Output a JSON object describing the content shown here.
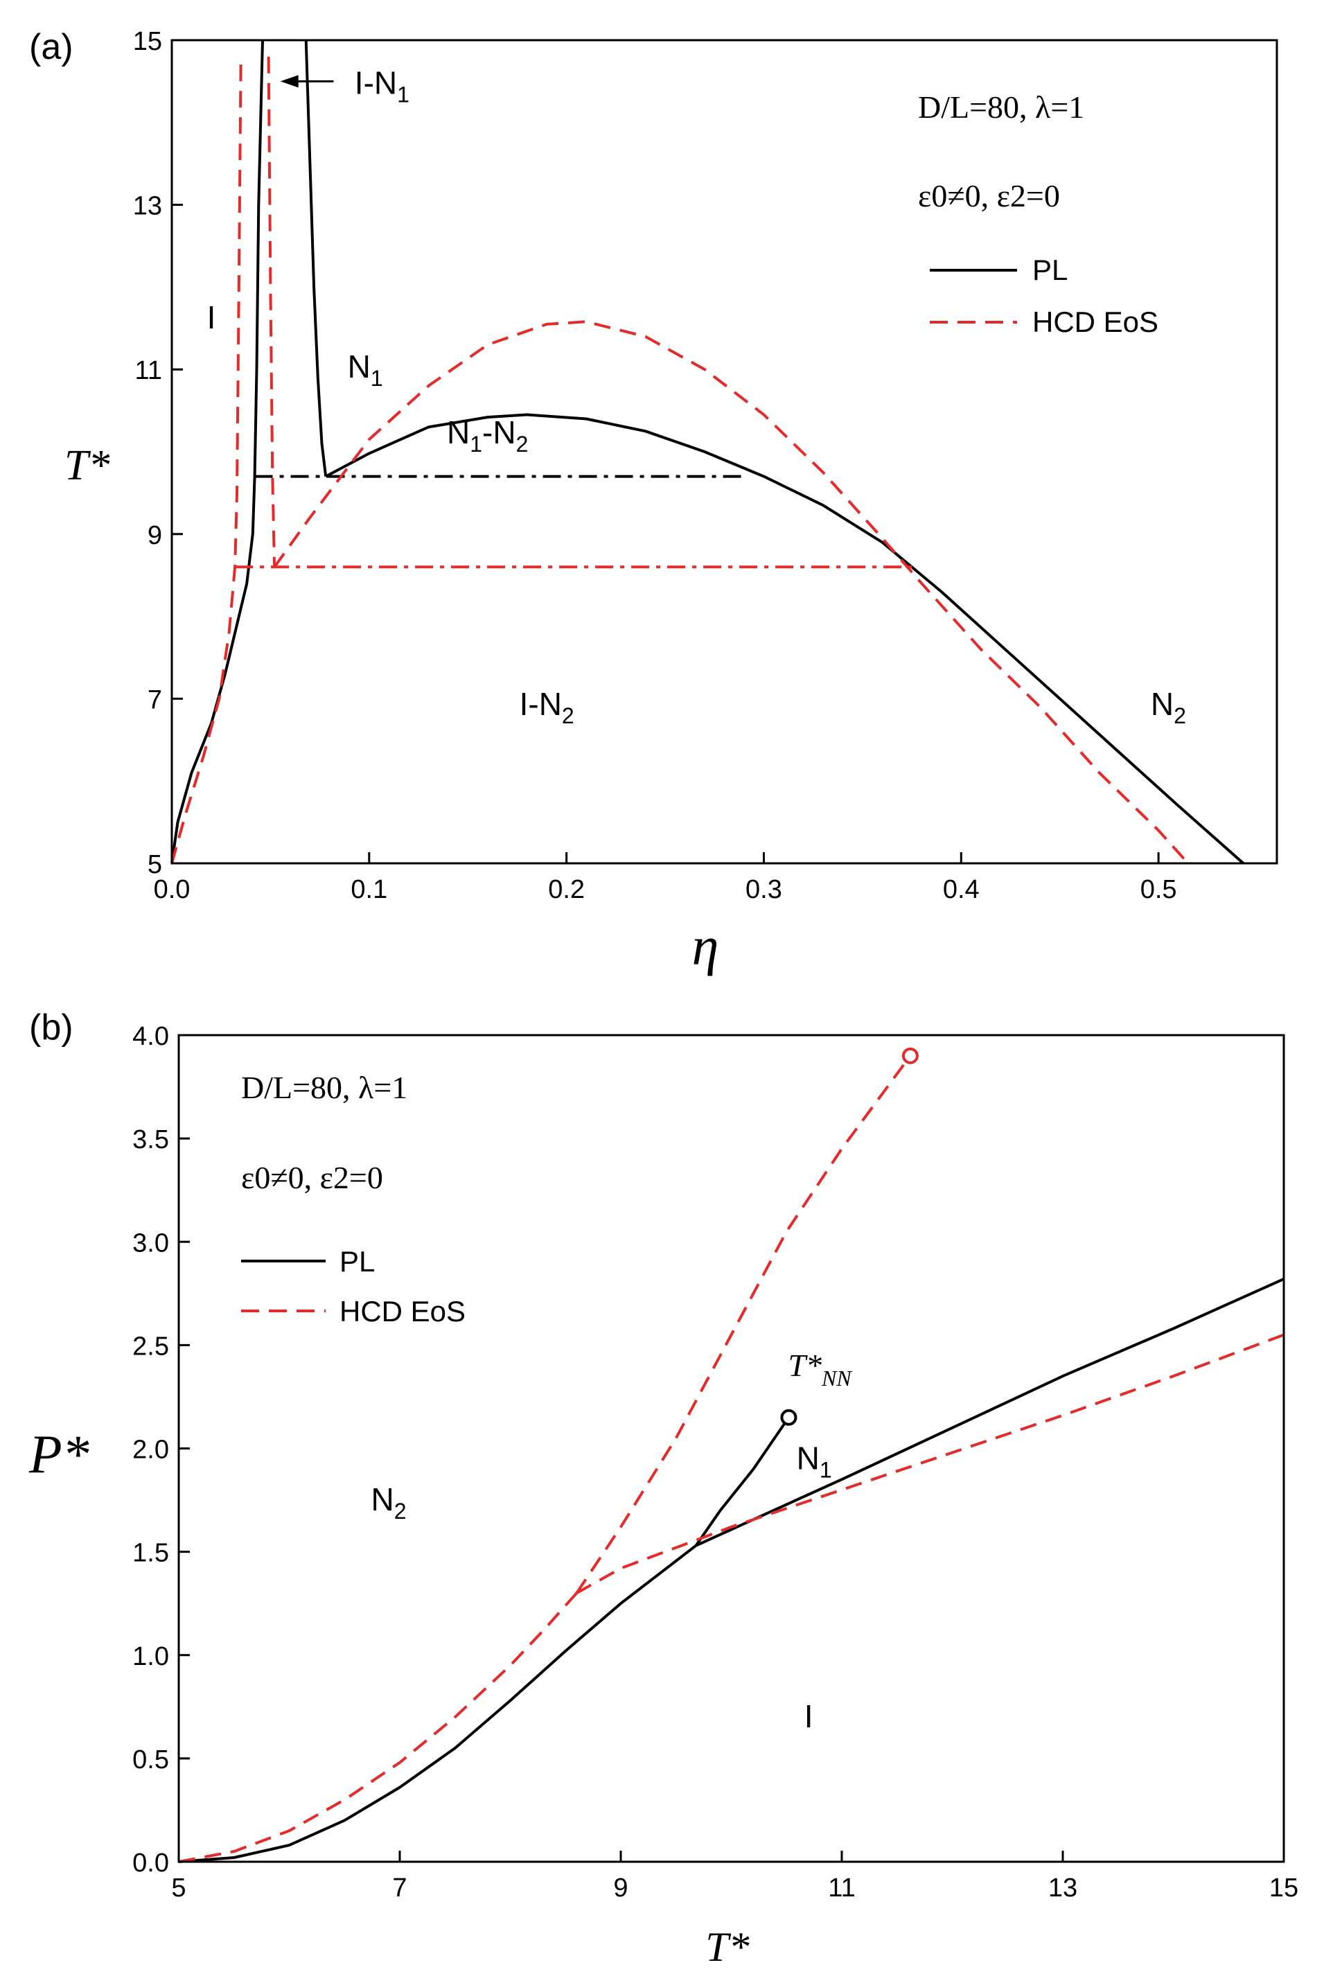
{
  "chart_data": [
    {
      "panel_tag": "(a)",
      "type": "line",
      "xlabel": "η",
      "ylabel": "T*",
      "xlim": [
        0.0,
        0.56
      ],
      "ylim": [
        5,
        15
      ],
      "xticks": [
        "0.0",
        "0.1",
        "0.2",
        "0.3",
        "0.4",
        "0.5"
      ],
      "yticks": [
        "5",
        "7",
        "9",
        "11",
        "13",
        "15"
      ],
      "grid": false,
      "legend_position": "top-right",
      "params_line": "D/L=80, λ=1",
      "epsilon_line": "ε0≠0, ε2=0",
      "legend": [
        {
          "label": "PL",
          "color": "#000000",
          "dash": "solid"
        },
        {
          "label": "HCD EoS",
          "color": "#e32b2b",
          "dash": "dashed"
        }
      ],
      "regions": [
        {
          "label": "I",
          "x": 0.02,
          "y": 11.5
        },
        {
          "label": "N",
          "sub": "1",
          "x": 0.098,
          "y": 10.9
        },
        {
          "label": "N",
          "sub": "1",
          "label2": "-N",
          "sub2": "2",
          "x": 0.16,
          "y": 10.1
        },
        {
          "label": "I-N",
          "sub": "2",
          "x": 0.19,
          "y": 6.8
        },
        {
          "label": "N",
          "sub": "2",
          "x": 0.505,
          "y": 6.8
        }
      ],
      "annotation": {
        "label": "I-N",
        "sub": "1",
        "text_x": 0.103,
        "text_y": 14.5,
        "arrow_to_x": 0.055,
        "arrow_to_y": 14.5
      },
      "series": [
        {
          "name": "PL",
          "color": "#000000",
          "dash": "solid",
          "role": "I-N coexistence (isotropic side)",
          "points": [
            [
              0.0,
              5.0
            ],
            [
              0.003,
              5.5
            ],
            [
              0.01,
              6.1
            ],
            [
              0.02,
              6.7
            ],
            [
              0.027,
              7.3
            ],
            [
              0.033,
              7.9
            ],
            [
              0.038,
              8.4
            ],
            [
              0.041,
              9.0
            ],
            [
              0.042,
              9.7
            ],
            [
              0.043,
              11.0
            ],
            [
              0.044,
              13.0
            ],
            [
              0.046,
              15.0
            ]
          ]
        },
        {
          "name": "PL",
          "color": "#000000",
          "dash": "solid",
          "role": "I-N1 coexistence (nematic side)",
          "points": [
            [
              0.068,
              15.0
            ],
            [
              0.07,
              13.5
            ],
            [
              0.072,
              12.0
            ],
            [
              0.074,
              10.9
            ],
            [
              0.076,
              10.1
            ],
            [
              0.078,
              9.7
            ]
          ]
        },
        {
          "name": "PL",
          "color": "#000000",
          "dash": "solid",
          "role": "N1-N2 binodal and I-N2 boundary",
          "points": [
            [
              0.078,
              9.7
            ],
            [
              0.1,
              9.98
            ],
            [
              0.13,
              10.3
            ],
            [
              0.16,
              10.42
            ],
            [
              0.18,
              10.45
            ],
            [
              0.21,
              10.4
            ],
            [
              0.24,
              10.25
            ],
            [
              0.27,
              10.0
            ],
            [
              0.3,
              9.7
            ],
            [
              0.33,
              9.35
            ],
            [
              0.36,
              8.9
            ],
            [
              0.39,
              8.3
            ],
            [
              0.42,
              7.65
            ],
            [
              0.45,
              7.0
            ],
            [
              0.48,
              6.35
            ],
            [
              0.51,
              5.7
            ],
            [
              0.543,
              5.0
            ]
          ]
        },
        {
          "name": "PL",
          "color": "#000000",
          "dash": "dashdot",
          "role": "triple point T=9.7",
          "points": [
            [
              0.042,
              9.7
            ],
            [
              0.29,
              9.7
            ]
          ]
        },
        {
          "name": "HCD EoS",
          "color": "#e32b2b",
          "dash": "dashed",
          "role": "I-N coexistence (isotropic side)",
          "points": [
            [
              0.0,
              5.0
            ],
            [
              0.007,
              5.6
            ],
            [
              0.016,
              6.3
            ],
            [
              0.024,
              7.0
            ],
            [
              0.029,
              7.8
            ],
            [
              0.032,
              8.6
            ],
            [
              0.033,
              9.5
            ],
            [
              0.034,
              12.0
            ],
            [
              0.035,
              14.8
            ]
          ]
        },
        {
          "name": "HCD EoS",
          "color": "#e32b2b",
          "dash": "dashed",
          "role": "I-N1 coexistence (nematic side)",
          "points": [
            [
              0.049,
              14.8
            ],
            [
              0.05,
              12.0
            ],
            [
              0.051,
              9.7
            ],
            [
              0.052,
              8.6
            ]
          ]
        },
        {
          "name": "HCD EoS",
          "color": "#e32b2b",
          "dash": "dashed",
          "role": "N1-N2 binodal and I-N2 boundary",
          "points": [
            [
              0.052,
              8.6
            ],
            [
              0.07,
              9.2
            ],
            [
              0.1,
              10.15
            ],
            [
              0.13,
              10.8
            ],
            [
              0.16,
              11.3
            ],
            [
              0.19,
              11.55
            ],
            [
              0.21,
              11.58
            ],
            [
              0.24,
              11.4
            ],
            [
              0.27,
              11.0
            ],
            [
              0.3,
              10.45
            ],
            [
              0.33,
              9.75
            ],
            [
              0.36,
              8.95
            ],
            [
              0.38,
              8.4
            ],
            [
              0.41,
              7.6
            ],
            [
              0.44,
              6.9
            ],
            [
              0.47,
              6.1
            ],
            [
              0.5,
              5.4
            ],
            [
              0.515,
              5.0
            ]
          ]
        },
        {
          "name": "HCD EoS",
          "color": "#e32b2b",
          "dash": "dashdot",
          "role": "triple point T=8.6",
          "points": [
            [
              0.032,
              8.6
            ],
            [
              0.375,
              8.6
            ]
          ]
        }
      ]
    },
    {
      "panel_tag": "(b)",
      "type": "line",
      "xlabel": "T*",
      "ylabel": "P*",
      "xlim": [
        5,
        15
      ],
      "ylim": [
        0.0,
        4.0
      ],
      "xticks": [
        "5",
        "7",
        "9",
        "11",
        "13",
        "15"
      ],
      "yticks": [
        "0.0",
        "0.5",
        "1.0",
        "1.5",
        "2.0",
        "2.5",
        "3.0",
        "3.5",
        "4.0"
      ],
      "grid": false,
      "legend_position": "top-left",
      "params_line": "D/L=80, λ=1",
      "epsilon_line": "ε0≠0, ε2=0",
      "legend": [
        {
          "label": "PL",
          "color": "#000000",
          "dash": "solid"
        },
        {
          "label": "HCD EoS",
          "color": "#e32b2b",
          "dash": "dashed"
        }
      ],
      "regions": [
        {
          "label": "N",
          "sub": "2",
          "x": 6.9,
          "y": 1.7
        },
        {
          "label": "N",
          "sub": "1",
          "x": 10.75,
          "y": 1.9
        },
        {
          "label": "I",
          "x": 10.7,
          "y": 0.65
        }
      ],
      "critical_label": {
        "label": "T*",
        "sub": "NN",
        "x": 10.8,
        "y": 2.35
      },
      "critical_points": [
        {
          "series": "PL",
          "x": 10.52,
          "y": 2.15,
          "color": "#000000"
        },
        {
          "series": "HCD EoS",
          "x": 11.62,
          "y": 3.9,
          "color": "#e32b2b"
        }
      ],
      "series": [
        {
          "name": "PL",
          "color": "#000000",
          "dash": "solid",
          "role": "I-N2 coexistence",
          "points": [
            [
              5.0,
              0.0
            ],
            [
              5.5,
              0.02
            ],
            [
              6.0,
              0.08
            ],
            [
              6.5,
              0.2
            ],
            [
              7.0,
              0.36
            ],
            [
              7.5,
              0.55
            ],
            [
              8.0,
              0.78
            ],
            [
              8.5,
              1.02
            ],
            [
              9.0,
              1.25
            ],
            [
              9.68,
              1.53
            ]
          ]
        },
        {
          "name": "PL",
          "color": "#000000",
          "dash": "solid",
          "role": "N1-N2 coexistence",
          "points": [
            [
              9.68,
              1.53
            ],
            [
              9.9,
              1.7
            ],
            [
              10.2,
              1.9
            ],
            [
              10.52,
              2.15
            ]
          ]
        },
        {
          "name": "PL",
          "color": "#000000",
          "dash": "solid",
          "role": "I-N1 coexistence",
          "points": [
            [
              9.68,
              1.53
            ],
            [
              11.0,
              1.85
            ],
            [
              12.0,
              2.1
            ],
            [
              13.0,
              2.35
            ],
            [
              14.0,
              2.58
            ],
            [
              15.0,
              2.82
            ]
          ]
        },
        {
          "name": "HCD EoS",
          "color": "#e32b2b",
          "dash": "dashed",
          "role": "I-N2 coexistence",
          "points": [
            [
              5.0,
              0.0
            ],
            [
              5.5,
              0.05
            ],
            [
              6.0,
              0.15
            ],
            [
              6.5,
              0.3
            ],
            [
              7.0,
              0.48
            ],
            [
              7.5,
              0.7
            ],
            [
              8.0,
              0.95
            ],
            [
              8.3,
              1.12
            ],
            [
              8.6,
              1.3
            ]
          ]
        },
        {
          "name": "HCD EoS",
          "color": "#e32b2b",
          "dash": "dashed",
          "role": "N1-N2 coexistence",
          "points": [
            [
              8.6,
              1.3
            ],
            [
              9.0,
              1.62
            ],
            [
              9.5,
              2.05
            ],
            [
              10.0,
              2.55
            ],
            [
              10.5,
              3.05
            ],
            [
              11.0,
              3.45
            ],
            [
              11.62,
              3.9
            ]
          ]
        },
        {
          "name": "HCD EoS",
          "color": "#e32b2b",
          "dash": "dashed",
          "role": "I-N1 coexistence",
          "points": [
            [
              8.6,
              1.3
            ],
            [
              9.0,
              1.42
            ],
            [
              10.0,
              1.62
            ],
            [
              11.0,
              1.8
            ],
            [
              12.0,
              1.98
            ],
            [
              13.0,
              2.16
            ],
            [
              14.0,
              2.35
            ],
            [
              15.0,
              2.55
            ]
          ]
        }
      ]
    }
  ]
}
